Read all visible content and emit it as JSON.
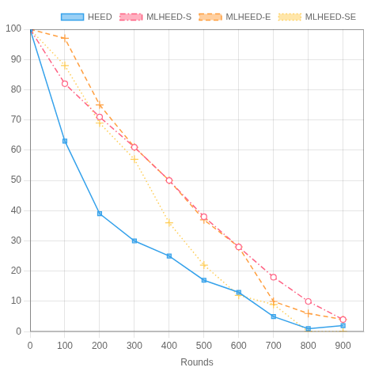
{
  "chart_data": {
    "type": "line",
    "xlabel": "Rounds",
    "x": [
      0,
      100,
      200,
      300,
      400,
      500,
      600,
      700,
      800,
      900
    ],
    "series": [
      {
        "name": "HEED",
        "values": [
          100,
          63,
          39,
          30,
          25,
          17,
          13,
          5,
          1,
          2
        ],
        "marker": "square",
        "line_style": "solid"
      },
      {
        "name": "MLHEED-S",
        "values": [
          100,
          82,
          71,
          61,
          50,
          38,
          28,
          18,
          10,
          4
        ],
        "marker": "open_circle",
        "line_style": "dashdot"
      },
      {
        "name": "MLHEED-E",
        "values": [
          100,
          97,
          75,
          61,
          50,
          37,
          28,
          10,
          6,
          4
        ],
        "marker": "plus",
        "line_style": "dashed"
      },
      {
        "name": "MLHEED-SE",
        "values": [
          100,
          88,
          69,
          57,
          36,
          22,
          12,
          9,
          0,
          0
        ],
        "marker": "plus",
        "line_style": "dotted"
      }
    ],
    "xlim": [
      0,
      960
    ],
    "ylim": [
      0,
      100
    ],
    "xticks": [
      0,
      100,
      200,
      300,
      400,
      500,
      600,
      700,
      800,
      900
    ],
    "yticks": [
      0,
      10,
      20,
      30,
      40,
      50,
      60,
      70,
      80,
      90,
      100
    ],
    "grid": true,
    "legend": "upper right"
  }
}
